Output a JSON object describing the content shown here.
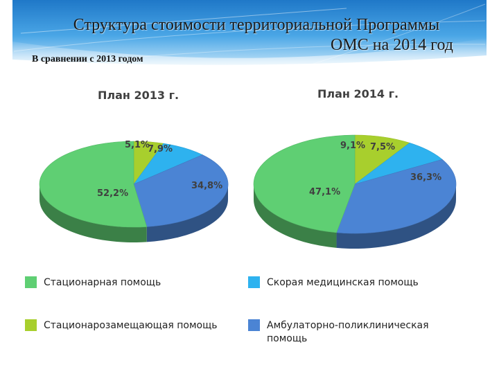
{
  "header": {
    "title_line1": "Структура стоимости территориальной Программы",
    "title_line2": "ОМС на 2014 год",
    "subtitle": "В сравнении с 2013 годом",
    "band_color": "#2e8fd8"
  },
  "chart_data": [
    {
      "type": "pie",
      "title": "План 2013 г.",
      "categories": [
        "Стационарная помощь",
        "Стационарозамещающая помощь",
        "Скорая медицинская помощь",
        "Амбулаторно-поликлиническая помощь"
      ],
      "values": [
        52.2,
        5.1,
        7.9,
        34.8
      ],
      "labels": [
        "52,2%",
        "5,1%",
        "7,9%",
        "34,8%"
      ],
      "colors": [
        "#5fcf73",
        "#a8cf2d",
        "#2eb2ef",
        "#4b84d4"
      ]
    },
    {
      "type": "pie",
      "title": "План 2014 г.",
      "categories": [
        "Стационарная помощь",
        "Стационарозамещающая помощь",
        "Скорая медицинская помощь",
        "Амбулаторно-поликлиническая помощь"
      ],
      "values": [
        47.1,
        9.1,
        7.5,
        36.3
      ],
      "labels": [
        "47,1%",
        "9,1%",
        "7,5%",
        "36,3%"
      ],
      "colors": [
        "#5fcf73",
        "#a8cf2d",
        "#2eb2ef",
        "#4b84d4"
      ]
    }
  ],
  "legend": [
    {
      "label": "Стационарная помощь",
      "color": "#5fcf73"
    },
    {
      "label": "Скорая медицинская помощь",
      "color": "#2eb2ef"
    },
    {
      "label": "Стационарозамещающая помощь",
      "color": "#a8cf2d"
    },
    {
      "label": "Амбулаторно-поликлиническая помощь",
      "color": "#4b84d4"
    }
  ]
}
